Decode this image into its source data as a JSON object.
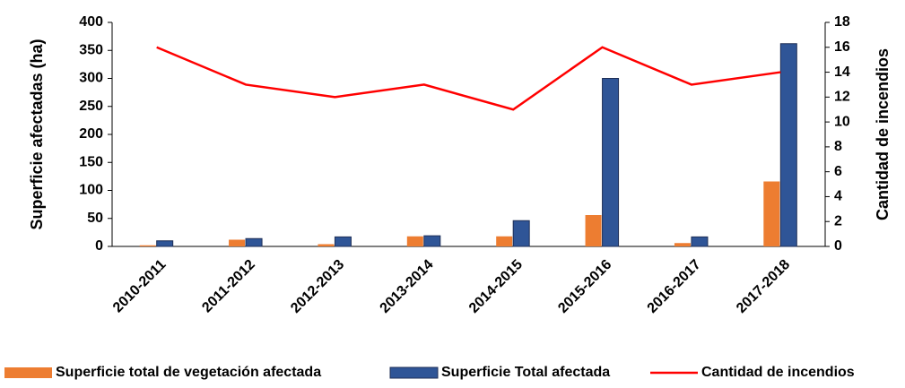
{
  "chart_data": {
    "type": "bar_line",
    "ylabel": "Superficie  afectadas (ha)",
    "y2label": "Cantidad de incendios",
    "categories": [
      "2010-2011",
      "2011-2012",
      "2012-2013",
      "2013-2014",
      "2014-2015",
      "2015-2016",
      "2016-2017",
      "2017-2018"
    ],
    "series": [
      {
        "name": "Superficie total de vegetación afectada",
        "type": "bar",
        "color": "#ed7d31",
        "values": [
          2,
          12,
          4,
          18,
          18,
          56,
          6,
          116
        ]
      },
      {
        "name": "Superficie Total afectada",
        "type": "bar",
        "color": "#2f5597",
        "values": [
          10,
          14,
          17,
          19,
          46,
          300,
          17,
          362
        ]
      },
      {
        "name": "Cantidad de incendios",
        "type": "line",
        "axis": "y2",
        "color": "#ff0000",
        "values": [
          16,
          13,
          12,
          13,
          11,
          16,
          13,
          14
        ]
      }
    ],
    "ylim": [
      0,
      400
    ],
    "yticks": [
      0,
      50,
      100,
      150,
      200,
      250,
      300,
      350,
      400
    ],
    "y2lim": [
      0,
      18
    ],
    "y2ticks": [
      0,
      2,
      4,
      6,
      8,
      10,
      12,
      14,
      16,
      18
    ],
    "legend": "bottom"
  }
}
